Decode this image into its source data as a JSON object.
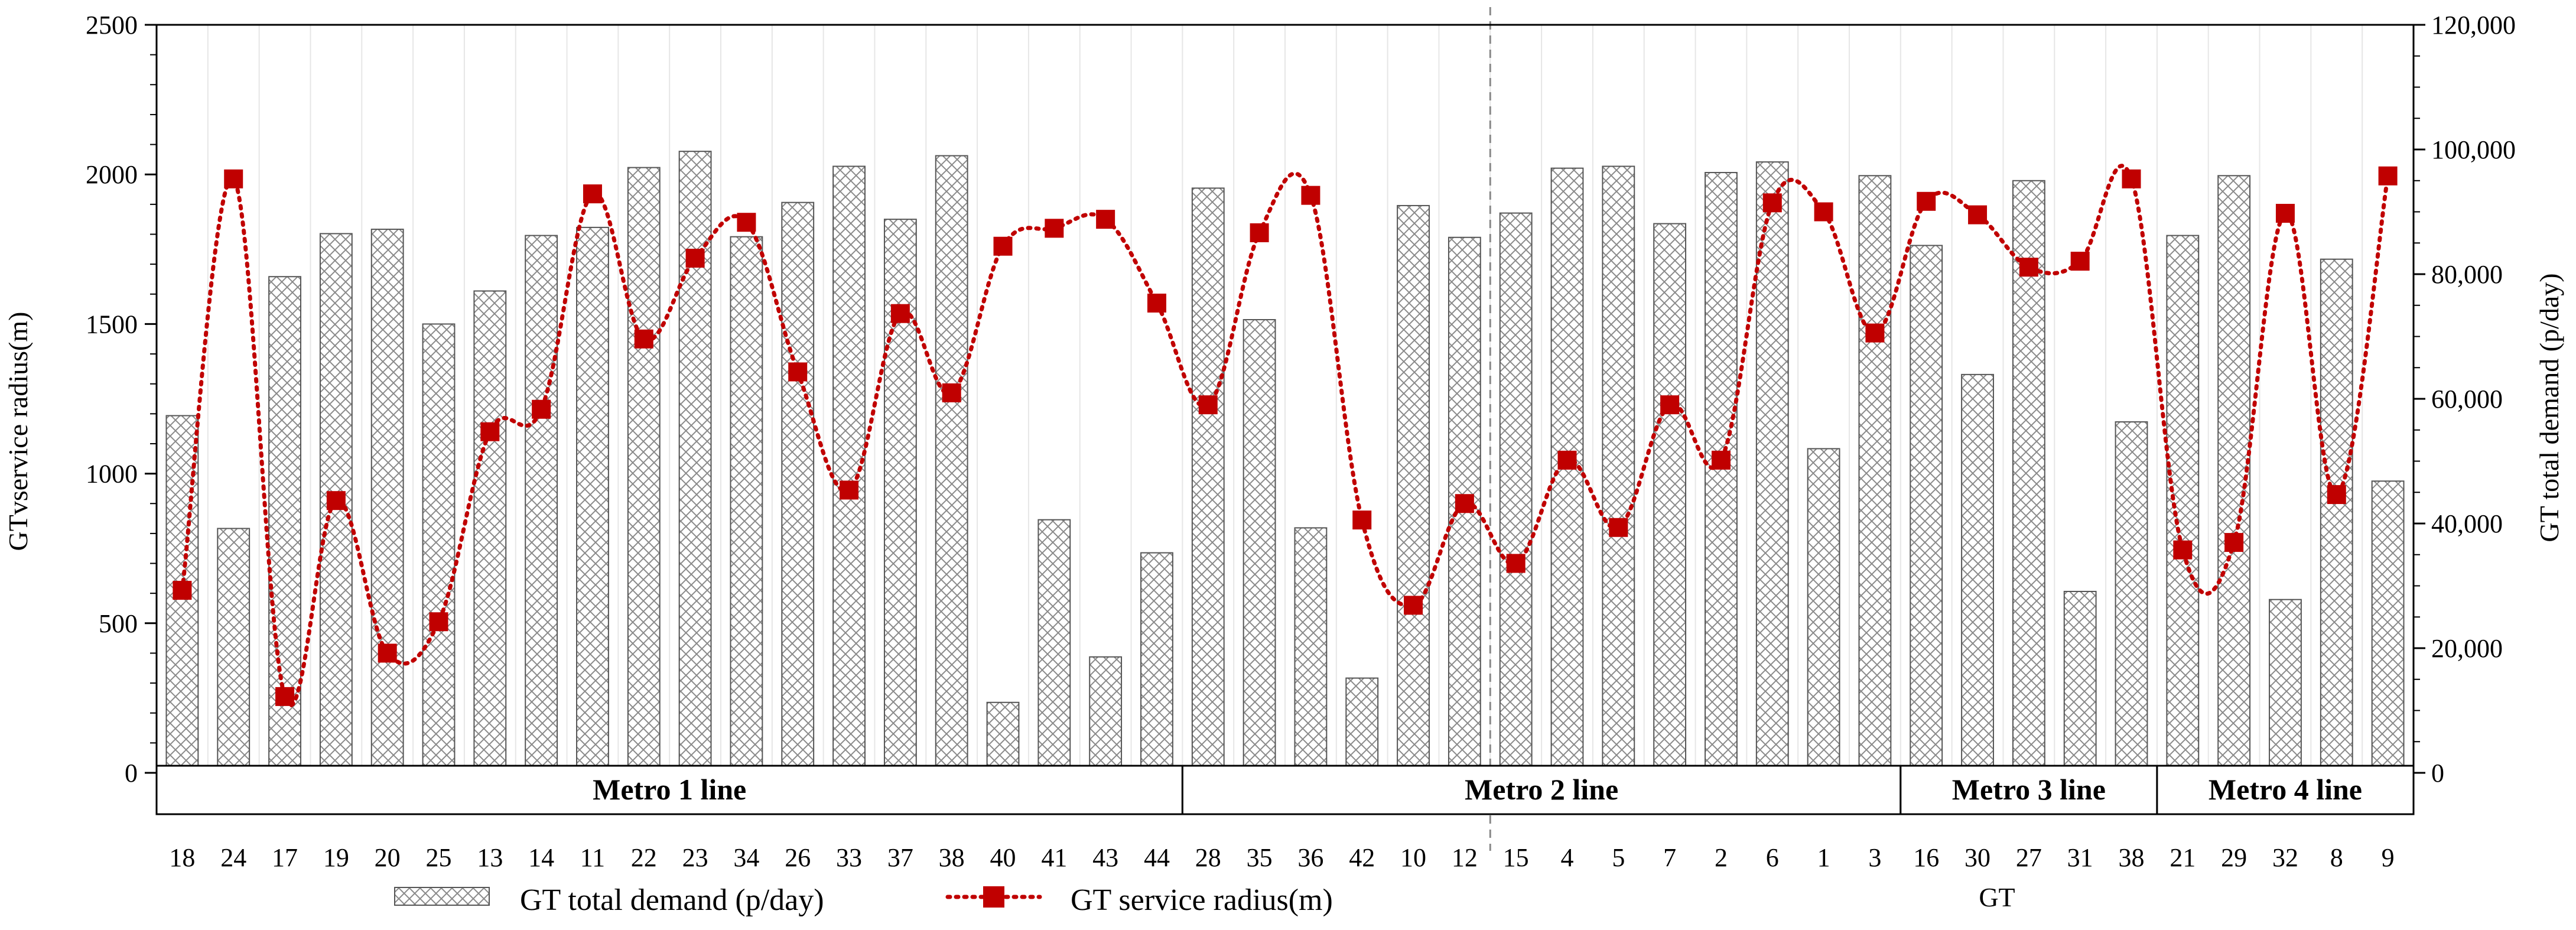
{
  "chart_data": {
    "type": "bar",
    "xlabel": "GT",
    "ylabel": "GTvservice radius(m)",
    "y2label": "GT total demand (p/day)",
    "ylim": [
      0,
      2500
    ],
    "y2lim": [
      0,
      120000
    ],
    "yticks": [
      "0",
      "500",
      "1000",
      "1500",
      "2000",
      "2500"
    ],
    "y2ticks": [
      "0",
      "20,000",
      "40,000",
      "60,000",
      "80,000",
      "100,000",
      "120,000"
    ],
    "categories": [
      "18",
      "24",
      "17",
      "19",
      "20",
      "25",
      "13",
      "14",
      "11",
      "22",
      "23",
      "34",
      "26",
      "33",
      "37",
      "38",
      "40",
      "41",
      "43",
      "44",
      "28",
      "35",
      "36",
      "42",
      "10",
      "12",
      "15",
      "4",
      "5",
      "7",
      "2",
      "6",
      "1",
      "3",
      "16",
      "30",
      "27",
      "31",
      "38",
      "21",
      "29",
      "32",
      "8",
      "9"
    ],
    "groups": [
      {
        "label": "Metro 1 line",
        "start": 0,
        "end": 19
      },
      {
        "label": "Metro 2 line",
        "start": 20,
        "end": 33
      },
      {
        "label": "Metro 3 line",
        "start": 34,
        "end": 38
      },
      {
        "label": "Metro 4 line",
        "start": 39,
        "end": 43
      }
    ],
    "series": [
      {
        "name": "GT total demand (p/day)",
        "kind": "bar",
        "axis": "right",
        "values": [
          57300,
          39200,
          79600,
          86500,
          87200,
          72000,
          77300,
          86200,
          87500,
          97100,
          99700,
          86000,
          91500,
          97300,
          88800,
          99000,
          11300,
          40600,
          18600,
          35300,
          93800,
          72700,
          39300,
          15200,
          91000,
          85900,
          89800,
          97000,
          97300,
          88100,
          96300,
          98000,
          52000,
          95800,
          84600,
          63900,
          95000,
          29100,
          56300,
          86200,
          95800,
          27800,
          82400,
          46800
        ],
        "color": "#d9d9d9"
      },
      {
        "name": "GT service radius(m)",
        "kind": "line",
        "axis": "left",
        "values": [
          610,
          1985,
          255,
          910,
          400,
          505,
          1140,
          1215,
          1935,
          1450,
          1720,
          1840,
          1340,
          945,
          1535,
          1270,
          1760,
          1820,
          1850,
          1570,
          1230,
          1805,
          1930,
          845,
          560,
          900,
          700,
          1045,
          820,
          1230,
          1045,
          1905,
          1875,
          1470,
          1910,
          1865,
          1690,
          1710,
          1985,
          745,
          770,
          1870,
          930,
          1995
        ],
        "color": "#c00000"
      }
    ],
    "grid": true,
    "legend": "bottom-left"
  }
}
